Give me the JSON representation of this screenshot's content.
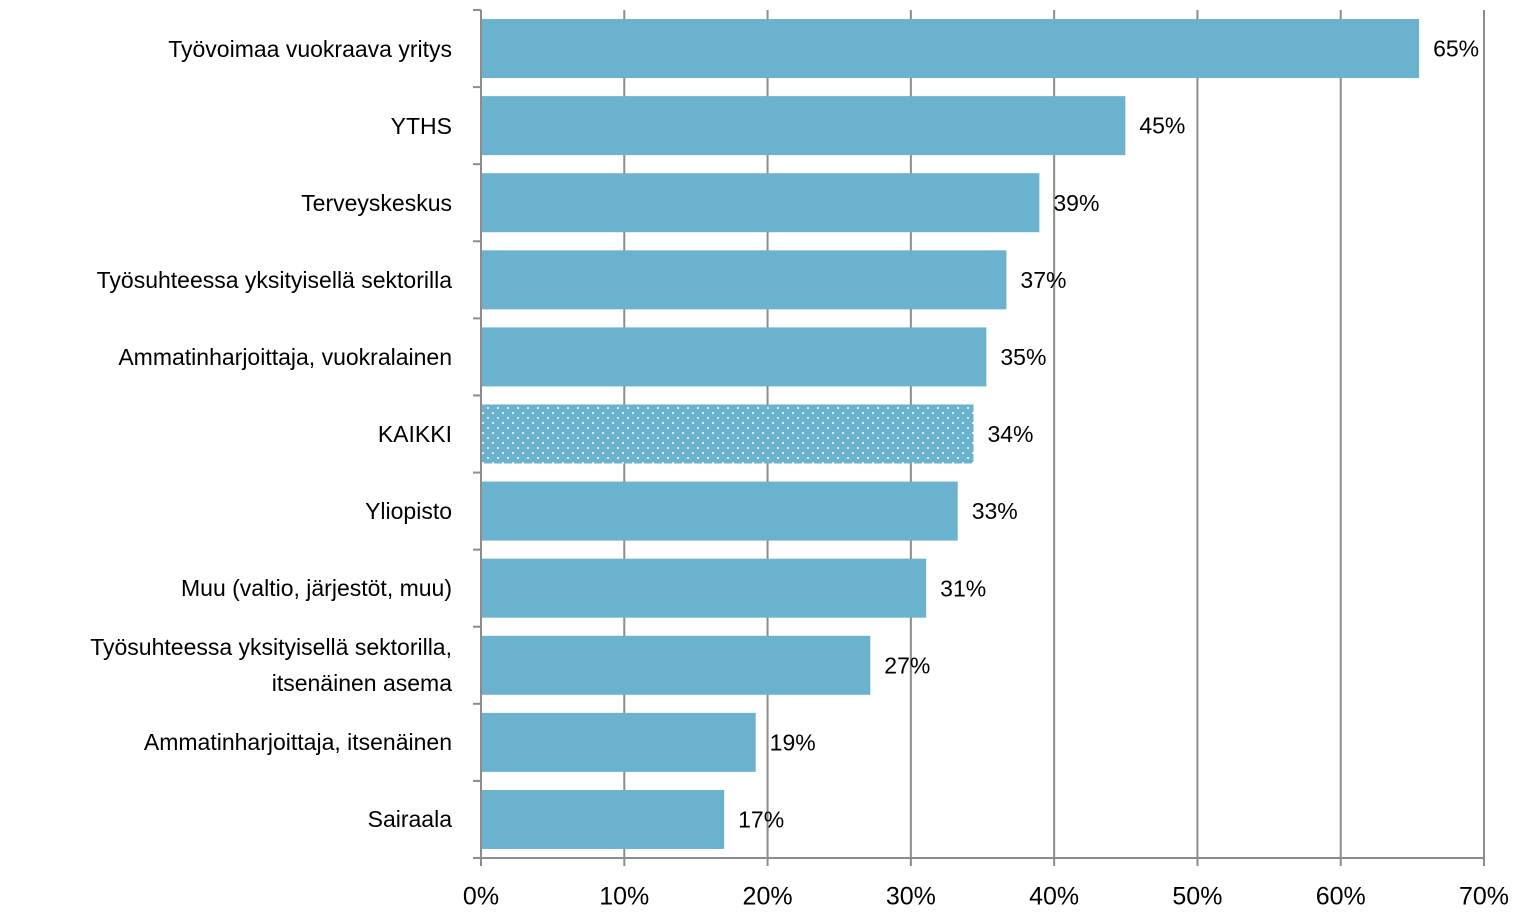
{
  "chart_data": {
    "type": "bar",
    "orientation": "horizontal",
    "categories": [
      "Työvoimaa vuokraava yritys",
      "YTHS",
      "Terveyskeskus",
      "Työsuhteessa yksityisellä sektorilla",
      "Ammatinharjoittaja, vuokralainen",
      "KAIKKI",
      "Yliopisto",
      "Muu (valtio, järjestöt, muu)",
      "Työsuhteessa yksityisellä sektorilla, itsenäinen asema",
      "Ammatinharjoittaja, itsenäinen",
      "Sairaala"
    ],
    "values": [
      65.4,
      44.9,
      38.9,
      36.6,
      35.2,
      34.3,
      33.2,
      31.0,
      27.1,
      19.1,
      16.9
    ],
    "value_labels": [
      "65%",
      "45%",
      "39%",
      "37%",
      "35%",
      "34%",
      "33%",
      "31%",
      "27%",
      "19%",
      "17%"
    ],
    "color": "#6ab2cd",
    "fills": [
      "solid",
      "solid",
      "solid",
      "solid",
      "solid",
      "dotted",
      "solid",
      "solid",
      "solid",
      "solid",
      "solid"
    ],
    "xlim": [
      0,
      70
    ],
    "xticks": [
      {
        "value": 0,
        "label": "0%"
      },
      {
        "value": 10,
        "label": "10%"
      },
      {
        "value": 20,
        "label": "20%"
      },
      {
        "value": 30,
        "label": "30%"
      },
      {
        "value": 40,
        "label": "40%"
      },
      {
        "value": 50,
        "label": "50%"
      },
      {
        "value": 60,
        "label": "60%"
      },
      {
        "value": 70,
        "label": "70%"
      }
    ],
    "grid": true
  }
}
